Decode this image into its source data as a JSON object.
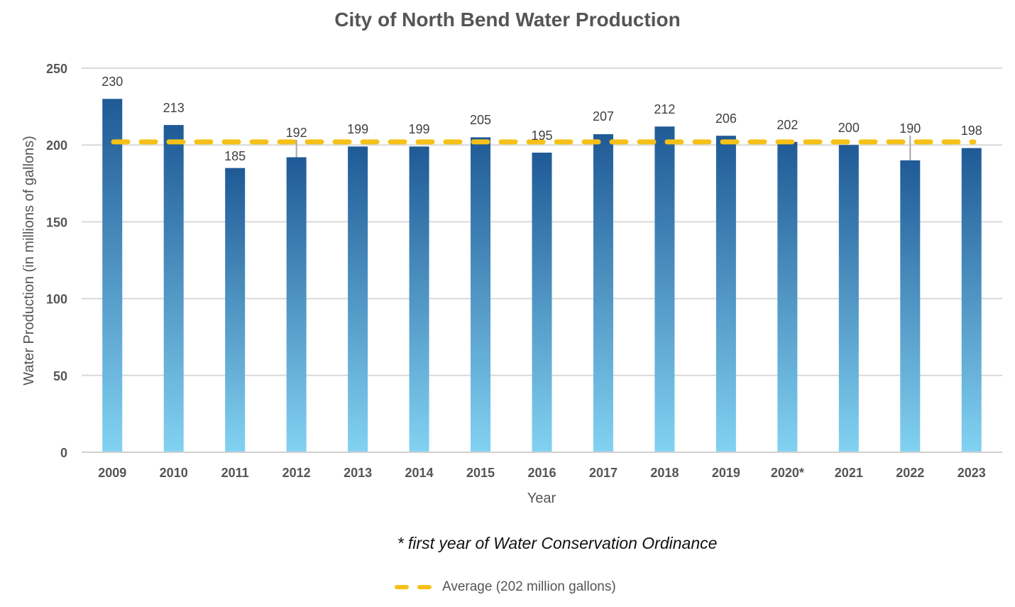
{
  "chart_data": {
    "type": "bar",
    "title": "City of North Bend Water Production",
    "xlabel": "Year",
    "ylabel": "Water Production (in millions of gallons)",
    "ylim": [
      0,
      250
    ],
    "yticks": [
      "0",
      "50",
      "100",
      "150",
      "200",
      "250"
    ],
    "grid": true,
    "categories": [
      "2009",
      "2010",
      "2011",
      "2012",
      "2013",
      "2014",
      "2015",
      "2016",
      "2017",
      "2018",
      "2019",
      "2020*",
      "2021",
      "2022",
      "2023"
    ],
    "values": [
      230,
      213,
      185,
      192,
      199,
      199,
      205,
      195,
      207,
      212,
      206,
      202,
      200,
      190,
      198
    ],
    "data_labels": [
      "230",
      "213",
      "185",
      "192",
      "199",
      "199",
      "205",
      "195",
      "207",
      "212",
      "206",
      "202",
      "200",
      "190",
      "198"
    ],
    "bar_gradient": {
      "top": "#1f5a96",
      "bottom": "#82d2f2"
    },
    "reference_line": {
      "label": "Average (202 million gallons)",
      "value": 202,
      "style": "dashed",
      "color": "#f5c118"
    },
    "legend_placement": "bottom",
    "footnote": "* first year of Water Conservation Ordinance"
  }
}
